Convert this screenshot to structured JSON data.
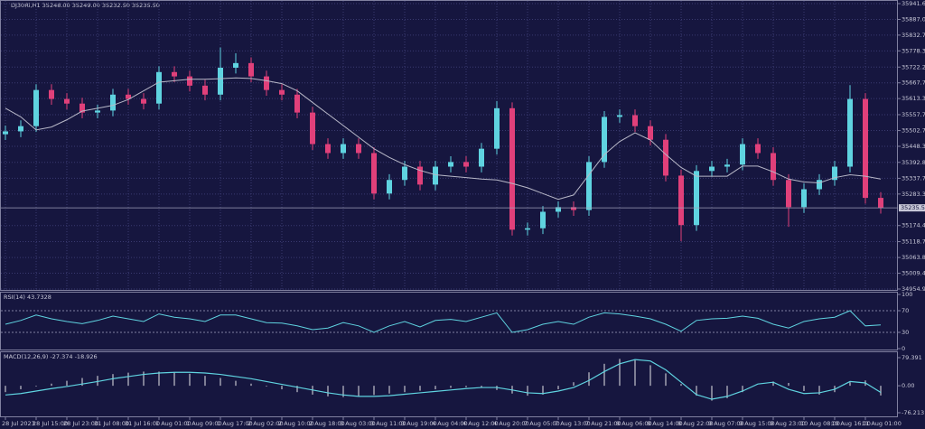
{
  "chart_data": [
    {
      "type": "candlestick",
      "title": "DJ30Ri,H1 35248.00 35249.00 35232.50 35235.50",
      "categories": [
        "28 Jul 2023",
        null,
        "28 Jul 15:00",
        null,
        "28 Jul 23:00",
        null,
        "31 Jul 08:00",
        null,
        "31 Jul 16:00",
        null,
        "1 Aug 01:00",
        null,
        "1 Aug 09:00",
        null,
        "1 Aug 17:00",
        null,
        "2 Aug 02:00",
        null,
        "2 Aug 10:00",
        null,
        "2 Aug 18:00",
        null,
        "3 Aug 03:00",
        null,
        "3 Aug 11:00",
        null,
        "3 Aug 19:00",
        null,
        "4 Aug 04:00",
        null,
        "4 Aug 12:00",
        null,
        "4 Aug 20:00",
        null,
        "7 Aug 05:00",
        null,
        "7 Aug 13:00",
        null,
        "7 Aug 21:00",
        null,
        "8 Aug 06:00",
        null,
        "8 Aug 14:00",
        null,
        "8 Aug 22:00",
        null,
        "9 Aug 07:00",
        null,
        "9 Aug 15:00",
        null,
        "9 Aug 23:00",
        null,
        "10 Aug 08:00",
        null,
        "10 Aug 16:00",
        null,
        "11 Aug 01:00",
        null
      ],
      "open": [
        35490,
        35500,
        35518,
        35643,
        35612,
        35596,
        35565,
        35572,
        35627,
        35612,
        35596,
        35705,
        35690,
        35658,
        35627,
        35720,
        35736,
        35690,
        35643,
        35627,
        35565,
        35456,
        35425,
        35456,
        35425,
        35285,
        35332,
        35378,
        35316,
        35378,
        35394,
        35378,
        35440,
        35580,
        35160,
        35165,
        35222,
        35238,
        35228,
        35394,
        35550,
        35556,
        35518,
        35471,
        35347,
        35176,
        35363,
        35378,
        35385,
        35456,
        35425,
        35332,
        35238,
        35300,
        35332,
        35378,
        35612,
        35270
      ],
      "high": [
        35520,
        35538,
        35663,
        35663,
        35632,
        35616,
        35592,
        35647,
        35647,
        35632,
        35725,
        35725,
        35710,
        35678,
        35790,
        35770,
        35756,
        35710,
        35663,
        35647,
        35585,
        35476,
        35476,
        35476,
        35445,
        35352,
        35398,
        35398,
        35398,
        35414,
        35414,
        35460,
        35605,
        35600,
        35185,
        35242,
        35258,
        35258,
        35414,
        35570,
        35576,
        35576,
        35538,
        35491,
        35367,
        35383,
        35398,
        35405,
        35476,
        35476,
        35445,
        35352,
        35320,
        35352,
        35398,
        35660,
        35632,
        35290
      ],
      "low": [
        35470,
        35480,
        35498,
        35592,
        35576,
        35545,
        35545,
        35552,
        35592,
        35576,
        35576,
        35670,
        35638,
        35607,
        35607,
        35700,
        35670,
        35623,
        35607,
        35545,
        35436,
        35405,
        35405,
        35405,
        35265,
        35265,
        35312,
        35296,
        35296,
        35358,
        35358,
        35358,
        35420,
        35140,
        35140,
        35145,
        35202,
        35208,
        35208,
        35374,
        35530,
        35498,
        35451,
        35327,
        35120,
        35156,
        35343,
        35358,
        35365,
        35405,
        35312,
        35170,
        35218,
        35280,
        35312,
        35358,
        35250,
        35215.5
      ],
      "close": [
        35500,
        35518,
        35643,
        35612,
        35596,
        35565,
        35572,
        35627,
        35612,
        35596,
        35705,
        35690,
        35658,
        35627,
        35720,
        35736,
        35690,
        35643,
        35627,
        35565,
        35456,
        35425,
        35456,
        35425,
        35285,
        35332,
        35378,
        35316,
        35378,
        35394,
        35378,
        35440,
        35580,
        35160,
        35165,
        35222,
        35238,
        35228,
        35394,
        35550,
        35556,
        35518,
        35471,
        35347,
        35176,
        35363,
        35378,
        35385,
        35456,
        35425,
        35332,
        35238,
        35300,
        35332,
        35378,
        35612,
        35270,
        35235.5
      ],
      "ma_values": [
        35580,
        35550,
        35505,
        35515,
        35540,
        35570,
        35580,
        35590,
        35610,
        35640,
        35670,
        35675,
        35680,
        35680,
        35682,
        35685,
        35683,
        35675,
        35665,
        35640,
        35600,
        35560,
        35520,
        35480,
        35440,
        35410,
        35385,
        35365,
        35350,
        35345,
        35340,
        35335,
        35332,
        35320,
        35305,
        35285,
        35265,
        35280,
        35350,
        35420,
        35465,
        35495,
        35470,
        35420,
        35375,
        35345,
        35345,
        35345,
        35380,
        35380,
        35360,
        35335,
        35325,
        35322,
        35340,
        35350,
        35345,
        35335
      ],
      "up_color": "#5fd3e0",
      "down_color": "#e0407a",
      "ma_color": "#b8b8c8",
      "last_price": {
        "value": 35235.5,
        "label": "35235.50"
      },
      "ylim": [
        34954.95,
        35941.65
      ],
      "yticks": [
        34954.95,
        {
          "value": 35009.4,
          "label": "35009.40"
        },
        35063.85,
        35118.75,
        {
          "value": 35174.4,
          "label": "35174.40"
        },
        {
          "value": 35283.3,
          "label": "35283.30"
        },
        {
          "value": 35337.7,
          "label": "35337.70"
        },
        35392.85,
        {
          "value": 35448.3,
          "label": "35448.30"
        },
        35502.75,
        {
          "value": 35557.7,
          "label": "35557.70"
        },
        {
          "value": 35613.3,
          "label": "35613.30"
        },
        35667.75,
        {
          "value": 35722.2,
          "label": "35722.20"
        },
        {
          "value": 35778.3,
          "label": "35778.30"
        },
        35832.75,
        {
          "value": 35887,
          "label": "35887.00"
        },
        35941.65
      ],
      "grid": true
    },
    {
      "type": "line",
      "title": "RSI(14) 43.7328",
      "values": [
        45,
        52,
        62,
        55,
        50,
        46,
        52,
        60,
        55,
        50,
        64,
        58,
        55,
        50,
        62,
        62,
        55,
        48,
        47,
        42,
        35,
        38,
        48,
        42,
        30,
        42,
        50,
        40,
        52,
        54,
        50,
        58,
        66,
        30,
        35,
        45,
        50,
        45,
        58,
        66,
        64,
        60,
        55,
        45,
        32,
        52,
        55,
        56,
        60,
        56,
        45,
        38,
        50,
        55,
        58,
        70,
        42,
        43.7328
      ],
      "color": "#5fd3e0",
      "ylim": [
        0,
        100
      ],
      "yticks": [
        0,
        30,
        70,
        100
      ],
      "levels": [
        30,
        70
      ]
    },
    {
      "type": "macd",
      "title": "MACD(12,26,9) -27.374 -18.926",
      "histogram": [
        -18,
        -10,
        -2,
        6,
        14,
        22,
        28,
        33,
        37,
        40,
        40,
        38,
        34,
        28,
        22,
        14,
        6,
        -2,
        -10,
        -18,
        -25,
        -30,
        -32,
        -30,
        -26,
        -22,
        -18,
        -14,
        -10,
        -6,
        -4,
        -4,
        -12,
        -22,
        -28,
        -25,
        -10,
        10,
        38,
        62,
        76,
        72,
        58,
        35,
        5,
        -28,
        -42,
        -35,
        -18,
        0,
        12,
        8,
        -15,
        -25,
        -18,
        10,
        15,
        -27.374
      ],
      "signal": [
        -26,
        -22,
        -15,
        -8,
        -2,
        5,
        12,
        20,
        26,
        32,
        36,
        38,
        38,
        36,
        32,
        26,
        20,
        12,
        4,
        -4,
        -12,
        -20,
        -26,
        -30,
        -30,
        -28,
        -24,
        -20,
        -16,
        -12,
        -8,
        -5,
        -5,
        -12,
        -20,
        -22,
        -15,
        -5,
        15,
        40,
        62,
        74,
        70,
        45,
        10,
        -25,
        -38,
        -30,
        -15,
        5,
        10,
        -10,
        -22,
        -20,
        -10,
        12,
        8,
        -18.926
      ],
      "histogram_color": "#a0a0b0",
      "signal_color": "#5fd3e0",
      "ylim": [
        -76.213,
        79.391
      ],
      "yticks": [
        -76.213,
        {
          "value": 0,
          "label": "0.00"
        },
        79.391
      ]
    }
  ]
}
